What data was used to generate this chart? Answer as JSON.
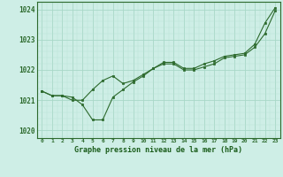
{
  "line1": [
    1021.3,
    1021.15,
    1021.15,
    1021.1,
    1020.85,
    1020.35,
    1020.35,
    1021.1,
    1021.35,
    1021.6,
    1021.8,
    1022.05,
    1022.2,
    1022.2,
    1022.0,
    1022.0,
    1022.1,
    1022.2,
    1022.4,
    1022.45,
    1022.5,
    1022.75,
    1023.2,
    1023.95
  ],
  "line2": [
    1021.3,
    1021.15,
    1021.15,
    1021.0,
    1021.0,
    1021.35,
    1021.65,
    1021.8,
    1021.55,
    1021.65,
    1021.85,
    1022.05,
    1022.25,
    1022.25,
    1022.05,
    1022.05,
    1022.2,
    1022.3,
    1022.45,
    1022.5,
    1022.55,
    1022.85,
    1023.55,
    1024.05
  ],
  "x": [
    0,
    1,
    2,
    3,
    4,
    5,
    6,
    7,
    8,
    9,
    10,
    11,
    12,
    13,
    14,
    15,
    16,
    17,
    18,
    19,
    20,
    21,
    22,
    23
  ],
  "ylim": [
    1019.75,
    1024.25
  ],
  "yticks": [
    1020,
    1021,
    1022,
    1023,
    1024
  ],
  "line_color": "#2d6a2d",
  "bg_color": "#ceeee6",
  "grid_major_color": "#a8d8c8",
  "grid_minor_color": "#b8e4d4",
  "xlabel": "Graphe pression niveau de la mer (hPa)",
  "xlabel_color": "#1a5c1a",
  "tick_color": "#2d6a2d"
}
